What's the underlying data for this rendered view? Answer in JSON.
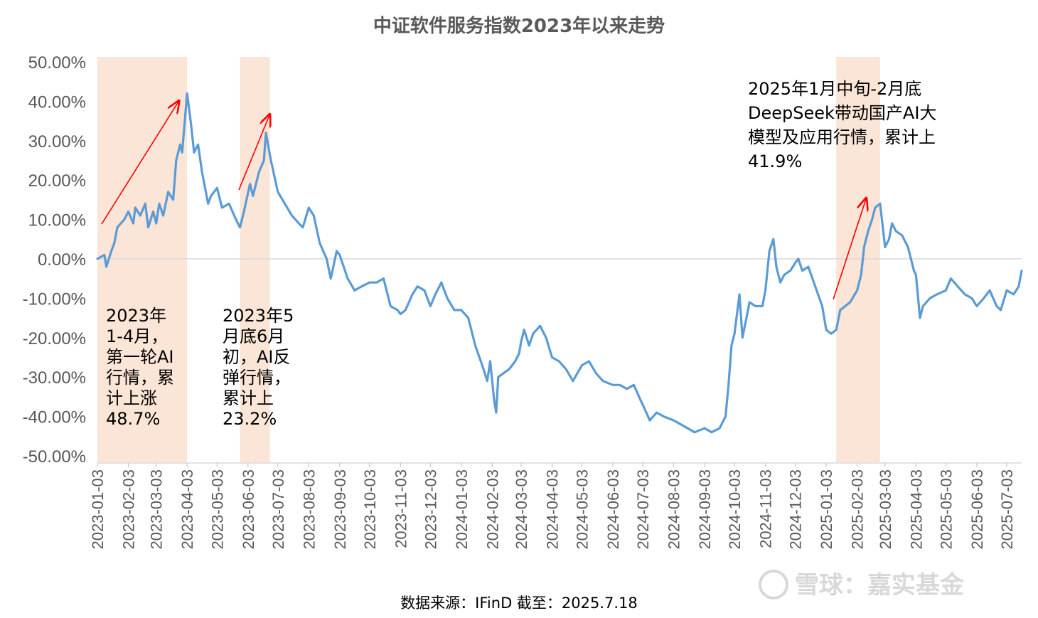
{
  "title": "中证软件服务指数2023年以来走势",
  "source": "数据来源：IFinD 截至：2025.7.18",
  "watermark": "雪球：嘉实基金",
  "colors": {
    "line": "#5b9bd5",
    "band": "#fbe5d6",
    "arrow": "#ff0000",
    "text": "#595959"
  },
  "annotations": [
    {
      "lines": [
        "2023年",
        "1-4月，",
        "第一轮AI",
        "行情，累",
        "计上涨",
        "48.7%"
      ]
    },
    {
      "lines": [
        "2023年5",
        "月底6月",
        "初，AI反",
        "弹行情，",
        "累计上",
        "23.2%"
      ]
    },
    {
      "lines": [
        "2025年1月中旬-2月底",
        "DeepSeek带动国产AI大",
        "模型及应用行情，累计上",
        "41.9%"
      ]
    }
  ],
  "chart_data": {
    "type": "line",
    "title": "中证软件服务指数2023年以来走势",
    "ylim": [
      -0.5,
      0.5
    ],
    "yticks": [
      "-50.00%",
      "-40.00%",
      "-30.00%",
      "-20.00%",
      "-10.00%",
      "0.00%",
      "10.00%",
      "20.00%",
      "30.00%",
      "40.00%",
      "50.00%"
    ],
    "ytick_values": [
      -0.5,
      -0.4,
      -0.3,
      -0.2,
      -0.1,
      0,
      0.1,
      0.2,
      0.3,
      0.4,
      0.5
    ],
    "xticks": [
      "2023-01-03",
      "2023-02-03",
      "2023-03-03",
      "2023-04-03",
      "2023-05-03",
      "2023-06-03",
      "2023-07-03",
      "2023-08-03",
      "2023-09-03",
      "2023-10-03",
      "2023-11-03",
      "2023-12-03",
      "2024-01-03",
      "2024-02-03",
      "2024-03-03",
      "2024-04-03",
      "2024-05-03",
      "2024-06-03",
      "2024-07-03",
      "2024-08-03",
      "2024-09-03",
      "2024-10-03",
      "2024-11-03",
      "2024-12-03",
      "2025-01-03",
      "2025-02-03",
      "2025-03-03",
      "2025-04-03",
      "2025-05-03",
      "2025-06-03",
      "2025-07-03"
    ],
    "grid": false,
    "highlight_periods": [
      {
        "start": "2023-01-03",
        "end": "2023-04-03"
      },
      {
        "start": "2023-05-26",
        "end": "2023-06-25"
      },
      {
        "start": "2025-01-13",
        "end": "2025-02-26"
      }
    ],
    "series": [
      {
        "values": [
          [
            "2023-01-03",
            0.0
          ],
          [
            "2023-01-10",
            0.01
          ],
          [
            "2023-01-12",
            -0.02
          ],
          [
            "2023-01-17",
            0.02
          ],
          [
            "2023-01-20",
            0.04
          ],
          [
            "2023-01-23",
            0.08
          ],
          [
            "2023-01-30",
            0.1
          ],
          [
            "2023-02-03",
            0.12
          ],
          [
            "2023-02-08",
            0.09
          ],
          [
            "2023-02-10",
            0.13
          ],
          [
            "2023-02-15",
            0.11
          ],
          [
            "2023-02-20",
            0.14
          ],
          [
            "2023-02-23",
            0.08
          ],
          [
            "2023-02-28",
            0.12
          ],
          [
            "2023-03-03",
            0.09
          ],
          [
            "2023-03-06",
            0.14
          ],
          [
            "2023-03-10",
            0.11
          ],
          [
            "2023-03-15",
            0.17
          ],
          [
            "2023-03-20",
            0.15
          ],
          [
            "2023-03-23",
            0.25
          ],
          [
            "2023-03-27",
            0.29
          ],
          [
            "2023-03-29",
            0.27
          ],
          [
            "2023-04-03",
            0.42
          ],
          [
            "2023-04-07",
            0.34
          ],
          [
            "2023-04-10",
            0.27
          ],
          [
            "2023-04-14",
            0.29
          ],
          [
            "2023-04-18",
            0.22
          ],
          [
            "2023-04-21",
            0.18
          ],
          [
            "2023-04-24",
            0.14
          ],
          [
            "2023-04-27",
            0.16
          ],
          [
            "2023-05-03",
            0.18
          ],
          [
            "2023-05-08",
            0.13
          ],
          [
            "2023-05-15",
            0.14
          ],
          [
            "2023-05-22",
            0.1
          ],
          [
            "2023-05-26",
            0.08
          ],
          [
            "2023-05-30",
            0.12
          ],
          [
            "2023-06-05",
            0.19
          ],
          [
            "2023-06-08",
            0.16
          ],
          [
            "2023-06-14",
            0.22
          ],
          [
            "2023-06-19",
            0.25
          ],
          [
            "2023-06-21",
            0.32
          ],
          [
            "2023-06-26",
            0.25
          ],
          [
            "2023-07-03",
            0.17
          ],
          [
            "2023-07-10",
            0.14
          ],
          [
            "2023-07-17",
            0.11
          ],
          [
            "2023-07-24",
            0.09
          ],
          [
            "2023-07-28",
            0.08
          ],
          [
            "2023-08-03",
            0.13
          ],
          [
            "2023-08-08",
            0.11
          ],
          [
            "2023-08-14",
            0.04
          ],
          [
            "2023-08-21",
            0.0
          ],
          [
            "2023-08-25",
            -0.05
          ],
          [
            "2023-08-31",
            0.02
          ],
          [
            "2023-09-03",
            0.01
          ],
          [
            "2023-09-11",
            -0.05
          ],
          [
            "2023-09-18",
            -0.08
          ],
          [
            "2023-09-25",
            -0.07
          ],
          [
            "2023-10-03",
            -0.06
          ],
          [
            "2023-10-10",
            -0.06
          ],
          [
            "2023-10-17",
            -0.05
          ],
          [
            "2023-10-24",
            -0.12
          ],
          [
            "2023-10-31",
            -0.13
          ],
          [
            "2023-11-03",
            -0.14
          ],
          [
            "2023-11-08",
            -0.13
          ],
          [
            "2023-11-15",
            -0.09
          ],
          [
            "2023-11-20",
            -0.07
          ],
          [
            "2023-11-27",
            -0.08
          ],
          [
            "2023-12-03",
            -0.12
          ],
          [
            "2023-12-08",
            -0.09
          ],
          [
            "2023-12-14",
            -0.06
          ],
          [
            "2023-12-20",
            -0.1
          ],
          [
            "2023-12-27",
            -0.13
          ],
          [
            "2024-01-03",
            -0.13
          ],
          [
            "2024-01-10",
            -0.15
          ],
          [
            "2024-01-17",
            -0.22
          ],
          [
            "2024-01-24",
            -0.27
          ],
          [
            "2024-01-29",
            -0.31
          ],
          [
            "2024-02-01",
            -0.26
          ],
          [
            "2024-02-05",
            -0.36
          ],
          [
            "2024-02-07",
            -0.39
          ],
          [
            "2024-02-09",
            -0.3
          ],
          [
            "2024-02-20",
            -0.28
          ],
          [
            "2024-02-26",
            -0.26
          ],
          [
            "2024-03-01",
            -0.24
          ],
          [
            "2024-03-03",
            -0.21
          ],
          [
            "2024-03-06",
            -0.18
          ],
          [
            "2024-03-11",
            -0.22
          ],
          [
            "2024-03-15",
            -0.19
          ],
          [
            "2024-03-22",
            -0.17
          ],
          [
            "2024-03-28",
            -0.2
          ],
          [
            "2024-04-03",
            -0.25
          ],
          [
            "2024-04-10",
            -0.26
          ],
          [
            "2024-04-17",
            -0.28
          ],
          [
            "2024-04-24",
            -0.31
          ],
          [
            "2024-05-03",
            -0.27
          ],
          [
            "2024-05-10",
            -0.26
          ],
          [
            "2024-05-17",
            -0.29
          ],
          [
            "2024-05-24",
            -0.31
          ],
          [
            "2024-06-03",
            -0.32
          ],
          [
            "2024-06-10",
            -0.32
          ],
          [
            "2024-06-17",
            -0.33
          ],
          [
            "2024-06-24",
            -0.32
          ],
          [
            "2024-07-01",
            -0.36
          ],
          [
            "2024-07-03",
            -0.37
          ],
          [
            "2024-07-10",
            -0.41
          ],
          [
            "2024-07-17",
            -0.39
          ],
          [
            "2024-07-24",
            -0.4
          ],
          [
            "2024-08-03",
            -0.41
          ],
          [
            "2024-08-10",
            -0.42
          ],
          [
            "2024-08-17",
            -0.43
          ],
          [
            "2024-08-24",
            -0.44
          ],
          [
            "2024-09-03",
            -0.43
          ],
          [
            "2024-09-10",
            -0.44
          ],
          [
            "2024-09-18",
            -0.43
          ],
          [
            "2024-09-24",
            -0.4
          ],
          [
            "2024-09-27",
            -0.32
          ],
          [
            "2024-09-30",
            -0.22
          ],
          [
            "2024-10-03",
            -0.19
          ],
          [
            "2024-10-08",
            -0.09
          ],
          [
            "2024-10-11",
            -0.2
          ],
          [
            "2024-10-15",
            -0.15
          ],
          [
            "2024-10-18",
            -0.11
          ],
          [
            "2024-10-24",
            -0.12
          ],
          [
            "2024-10-31",
            -0.12
          ],
          [
            "2024-11-03",
            -0.08
          ],
          [
            "2024-11-07",
            0.02
          ],
          [
            "2024-11-11",
            0.05
          ],
          [
            "2024-11-14",
            -0.02
          ],
          [
            "2024-11-18",
            -0.06
          ],
          [
            "2024-11-22",
            -0.04
          ],
          [
            "2024-11-28",
            -0.03
          ],
          [
            "2024-12-03",
            -0.01
          ],
          [
            "2024-12-06",
            0.0
          ],
          [
            "2024-12-10",
            -0.03
          ],
          [
            "2024-12-16",
            -0.02
          ],
          [
            "2024-12-23",
            -0.07
          ],
          [
            "2024-12-30",
            -0.12
          ],
          [
            "2025-01-03",
            -0.18
          ],
          [
            "2025-01-08",
            -0.19
          ],
          [
            "2025-01-13",
            -0.18
          ],
          [
            "2025-01-17",
            -0.13
          ],
          [
            "2025-01-22",
            -0.12
          ],
          [
            "2025-01-27",
            -0.11
          ],
          [
            "2025-02-03",
            -0.08
          ],
          [
            "2025-02-07",
            -0.04
          ],
          [
            "2025-02-10",
            0.03
          ],
          [
            "2025-02-14",
            0.07
          ],
          [
            "2025-02-18",
            0.1
          ],
          [
            "2025-02-21",
            0.13
          ],
          [
            "2025-02-26",
            0.14
          ],
          [
            "2025-03-03",
            0.03
          ],
          [
            "2025-03-07",
            0.05
          ],
          [
            "2025-03-10",
            0.09
          ],
          [
            "2025-03-14",
            0.07
          ],
          [
            "2025-03-20",
            0.06
          ],
          [
            "2025-03-26",
            0.03
          ],
          [
            "2025-04-01",
            -0.03
          ],
          [
            "2025-04-03",
            -0.04
          ],
          [
            "2025-04-07",
            -0.15
          ],
          [
            "2025-04-10",
            -0.12
          ],
          [
            "2025-04-17",
            -0.1
          ],
          [
            "2025-04-24",
            -0.09
          ],
          [
            "2025-05-03",
            -0.08
          ],
          [
            "2025-05-08",
            -0.05
          ],
          [
            "2025-05-15",
            -0.07
          ],
          [
            "2025-05-22",
            -0.09
          ],
          [
            "2025-05-29",
            -0.1
          ],
          [
            "2025-06-03",
            -0.12
          ],
          [
            "2025-06-10",
            -0.1
          ],
          [
            "2025-06-16",
            -0.08
          ],
          [
            "2025-06-23",
            -0.12
          ],
          [
            "2025-06-27",
            -0.13
          ],
          [
            "2025-07-03",
            -0.08
          ],
          [
            "2025-07-10",
            -0.09
          ],
          [
            "2025-07-15",
            -0.07
          ],
          [
            "2025-07-18",
            -0.03
          ]
        ]
      }
    ]
  }
}
